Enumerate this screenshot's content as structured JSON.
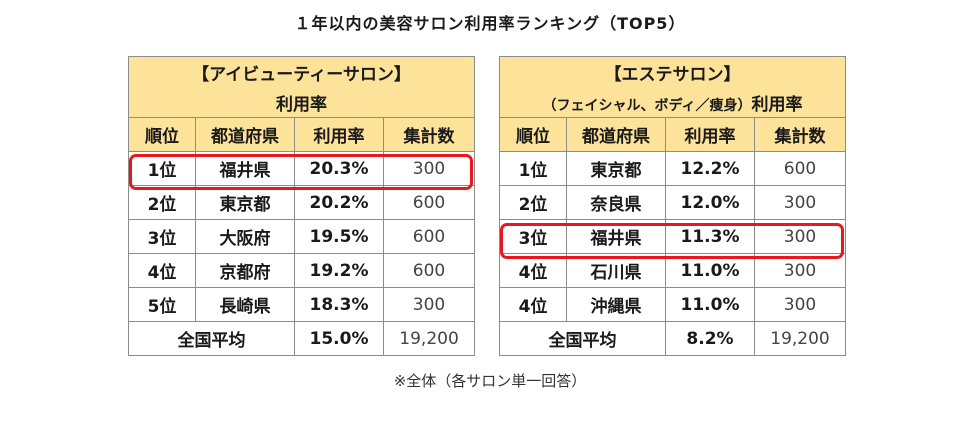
{
  "title": "１年以内の美容サロン利用率ランキング（TOP5）",
  "left_table": {
    "category": "【アイビューティーサロン】",
    "subtitle": "利用率",
    "headers": [
      "順位",
      "都道府県",
      "利用率",
      "集計数"
    ],
    "rows": [
      [
        "1位",
        "福井県",
        "20.3%",
        "300"
      ],
      [
        "2位",
        "東京都",
        "20.2%",
        "600"
      ],
      [
        "3位",
        "大阪府",
        "19.5%",
        "600"
      ],
      [
        "4位",
        "京都府",
        "19.2%",
        "600"
      ],
      [
        "5位",
        "長崎県",
        "18.3%",
        "300"
      ]
    ],
    "average": {
      "label": "全国平均",
      "rate": "15.0%",
      "count": "19,200"
    }
  },
  "right_table": {
    "category": "【エステサロン】",
    "subtitle_prefix": "（フェイシャル、ボディ／痩身）",
    "subtitle": "利用率",
    "headers": [
      "順位",
      "都道府県",
      "利用率",
      "集計数"
    ],
    "rows": [
      [
        "1位",
        "東京都",
        "12.2%",
        "600"
      ],
      [
        "2位",
        "奈良県",
        "12.0%",
        "300"
      ],
      [
        "3位",
        "福井県",
        "11.3%",
        "300"
      ],
      [
        "4位",
        "石川県",
        "11.0%",
        "300"
      ],
      [
        "4位",
        "沖縄県",
        "11.0%",
        "300"
      ]
    ],
    "average": {
      "label": "全国平均",
      "rate": "8.2%",
      "count": "19,200"
    }
  },
  "highlight_color": "#e8191e",
  "header_color": "#fde29a",
  "note": "※全体（各サロン単一回答）"
}
